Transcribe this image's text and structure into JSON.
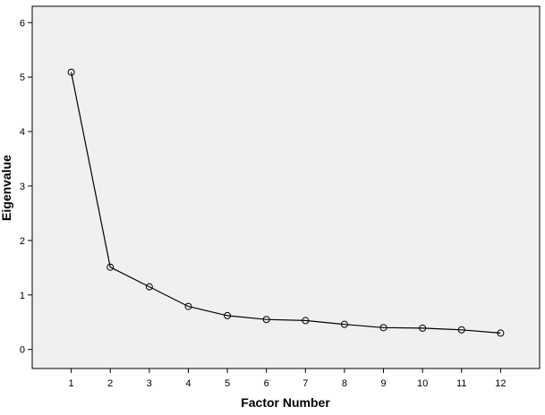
{
  "chart_data": {
    "type": "line",
    "xlabel": "Factor Number",
    "ylabel": "Eigenvalue",
    "x": [
      1,
      2,
      3,
      4,
      5,
      6,
      7,
      8,
      9,
      10,
      11,
      12
    ],
    "x_tick_labels": [
      "1",
      "2",
      "3",
      "4",
      "5",
      "6",
      "7",
      "8",
      "9",
      "10",
      "11",
      "12"
    ],
    "xlim": [
      0,
      13
    ],
    "ylim": [
      -0.35,
      6.3
    ],
    "y_ticks": [
      0,
      1,
      2,
      3,
      4,
      5,
      6
    ],
    "y_tick_labels": [
      "0",
      "1",
      "2",
      "3",
      "4",
      "5",
      "6"
    ],
    "series": [
      {
        "values": [
          5.09,
          1.51,
          1.15,
          0.79,
          0.62,
          0.55,
          0.53,
          0.46,
          0.4,
          0.39,
          0.36,
          0.3
        ],
        "marker": "open-circle",
        "color": "#000000"
      }
    ],
    "grid": false,
    "legend": false,
    "plot_background": "#f0f0f0"
  }
}
